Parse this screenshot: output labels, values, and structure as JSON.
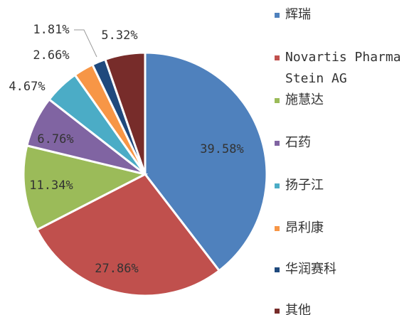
{
  "chart_data": {
    "type": "pie",
    "categories": [
      "辉瑞",
      "Novartis Pharma Stein AG",
      "施慧达",
      "石药",
      "扬子江",
      "昂利康",
      "华润赛科",
      "其他"
    ],
    "values": [
      39.58,
      27.86,
      11.34,
      6.76,
      4.67,
      2.66,
      1.81,
      5.32
    ],
    "value_labels": [
      "39.58%",
      "27.86%",
      "11.34%",
      "6.76%",
      "4.67%",
      "2.66%",
      "1.81%",
      "5.32%"
    ],
    "colors": [
      "#4f81bd",
      "#c0504d",
      "#9bbb59",
      "#8064a2",
      "#4bacc6",
      "#f79646",
      "#1f497d",
      "#772c2a"
    ],
    "legend": "right"
  }
}
